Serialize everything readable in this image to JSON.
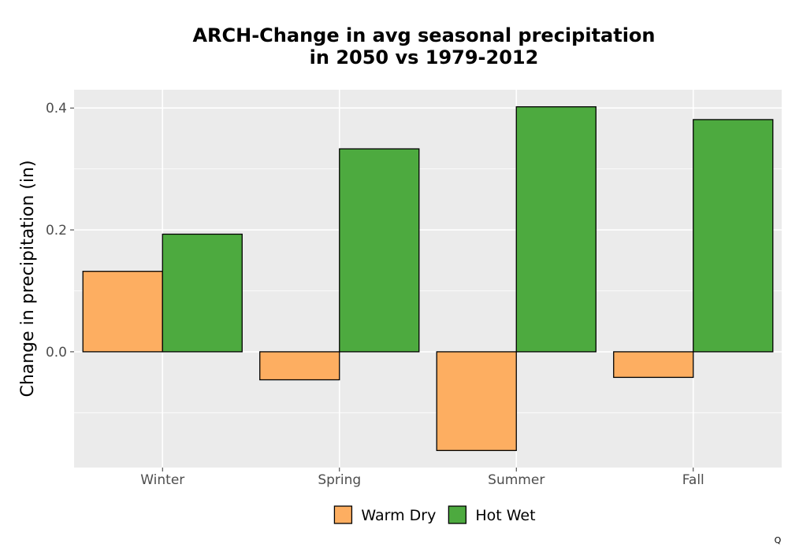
{
  "chart_data": {
    "type": "bar",
    "title_lines": [
      "ARCH-Change in avg seasonal precipitation",
      "in 2050 vs 1979-2012"
    ],
    "xlabel": "",
    "ylabel": "Change in precipitation (in)",
    "categories": [
      "Winter",
      "Spring",
      "Summer",
      "Fall"
    ],
    "series": [
      {
        "name": "Warm Dry",
        "color": "#fdae61",
        "values": [
          0.132,
          -0.046,
          -0.162,
          -0.042
        ]
      },
      {
        "name": "Hot Wet",
        "color": "#4daa3f",
        "values": [
          0.193,
          0.333,
          0.402,
          0.381
        ]
      }
    ],
    "ylim": [
      -0.19,
      0.43
    ],
    "yticks": [
      0.0,
      0.2,
      0.4
    ],
    "ytick_labels": [
      "0.0",
      "0.2",
      "0.4"
    ],
    "grid": true,
    "legend_position": "bottom",
    "panel_color": "#ebebeb",
    "gridline_color": "#ffffff"
  },
  "corner_note": "Q"
}
